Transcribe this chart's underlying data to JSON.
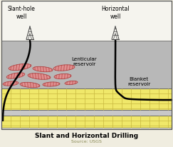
{
  "title": "Slant and Horizontal Drilling",
  "source": "Source: USGS",
  "bg_color": "#f0ede0",
  "border_color": "#555555",
  "ground_color": "#b8b8b8",
  "yellow_layer_color": "#f0e86a",
  "yellow_grid_color": "#c8b840",
  "gray_stripe_color": "#c8c8c8",
  "lenticular_fill": "#e09090",
  "lenticular_edge": "#b04040",
  "label_lenticular": "Lenticular\nreservoir",
  "label_blanket": "Blanket\nreservoir",
  "label_slant": "Slant-hole\nwell",
  "label_horizontal": "Horizontal\nwell",
  "white_bg": "#f5f4ee",
  "figsize": [
    2.43,
    2.07
  ],
  "dpi": 100,
  "lenticulars": [
    [
      28,
      95,
      32,
      8,
      -8
    ],
    [
      60,
      98,
      28,
      7,
      5
    ],
    [
      90,
      96,
      30,
      8,
      -5
    ],
    [
      22,
      107,
      26,
      7,
      -10
    ],
    [
      55,
      108,
      32,
      8,
      6
    ],
    [
      88,
      108,
      24,
      7,
      -4
    ],
    [
      15,
      118,
      22,
      6,
      -5
    ],
    [
      42,
      120,
      28,
      7,
      5
    ],
    [
      72,
      119,
      24,
      6,
      -3
    ],
    [
      100,
      117,
      18,
      5,
      -6
    ]
  ]
}
